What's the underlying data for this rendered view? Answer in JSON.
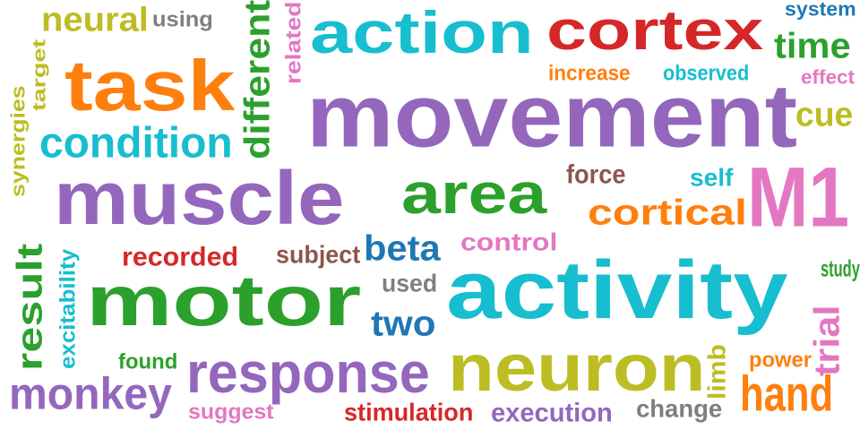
{
  "colors": {
    "purple": "#9467bd",
    "cyan": "#17becf",
    "red": "#d62728",
    "green": "#2ca02c",
    "orange": "#ff7f0e",
    "olive": "#bcbd22",
    "pink": "#e377c2",
    "brown": "#8c564b",
    "blue": "#1f77b4",
    "gray": "#7f7f7f"
  },
  "words": [
    {
      "text": "movement",
      "color": "purple"
    },
    {
      "text": "activity",
      "color": "cyan"
    },
    {
      "text": "muscle",
      "color": "purple"
    },
    {
      "text": "motor",
      "color": "green"
    },
    {
      "text": "cortex",
      "color": "red"
    },
    {
      "text": "action",
      "color": "cyan"
    },
    {
      "text": "task",
      "color": "orange"
    },
    {
      "text": "neuron",
      "color": "olive"
    },
    {
      "text": "area",
      "color": "green"
    },
    {
      "text": "M1",
      "color": "pink"
    },
    {
      "text": "response",
      "color": "purple"
    },
    {
      "text": "condition",
      "color": "cyan"
    },
    {
      "text": "monkey",
      "color": "purple"
    },
    {
      "text": "hand",
      "color": "orange"
    },
    {
      "text": "cortical",
      "color": "orange"
    },
    {
      "text": "neural",
      "color": "olive"
    },
    {
      "text": "time",
      "color": "green"
    },
    {
      "text": "different",
      "color": "green"
    },
    {
      "text": "result",
      "color": "green"
    },
    {
      "text": "beta",
      "color": "blue"
    },
    {
      "text": "two",
      "color": "blue"
    },
    {
      "text": "cue",
      "color": "olive"
    },
    {
      "text": "trial",
      "color": "pink"
    },
    {
      "text": "recorded",
      "color": "red"
    },
    {
      "text": "control",
      "color": "pink"
    },
    {
      "text": "stimulation",
      "color": "red"
    },
    {
      "text": "execution",
      "color": "purple"
    },
    {
      "text": "force",
      "color": "brown"
    },
    {
      "text": "subject",
      "color": "brown"
    },
    {
      "text": "using",
      "color": "gray"
    },
    {
      "text": "related",
      "color": "pink"
    },
    {
      "text": "synergies",
      "color": "olive"
    },
    {
      "text": "target",
      "color": "olive"
    },
    {
      "text": "increase",
      "color": "orange"
    },
    {
      "text": "observed",
      "color": "cyan"
    },
    {
      "text": "system",
      "color": "blue"
    },
    {
      "text": "effect",
      "color": "pink"
    },
    {
      "text": "self",
      "color": "cyan"
    },
    {
      "text": "used",
      "color": "gray"
    },
    {
      "text": "excitability",
      "color": "cyan"
    },
    {
      "text": "found",
      "color": "green"
    },
    {
      "text": "suggest",
      "color": "pink"
    },
    {
      "text": "change",
      "color": "gray"
    },
    {
      "text": "limb",
      "color": "olive"
    },
    {
      "text": "power",
      "color": "orange"
    },
    {
      "text": "study",
      "color": "green"
    }
  ]
}
